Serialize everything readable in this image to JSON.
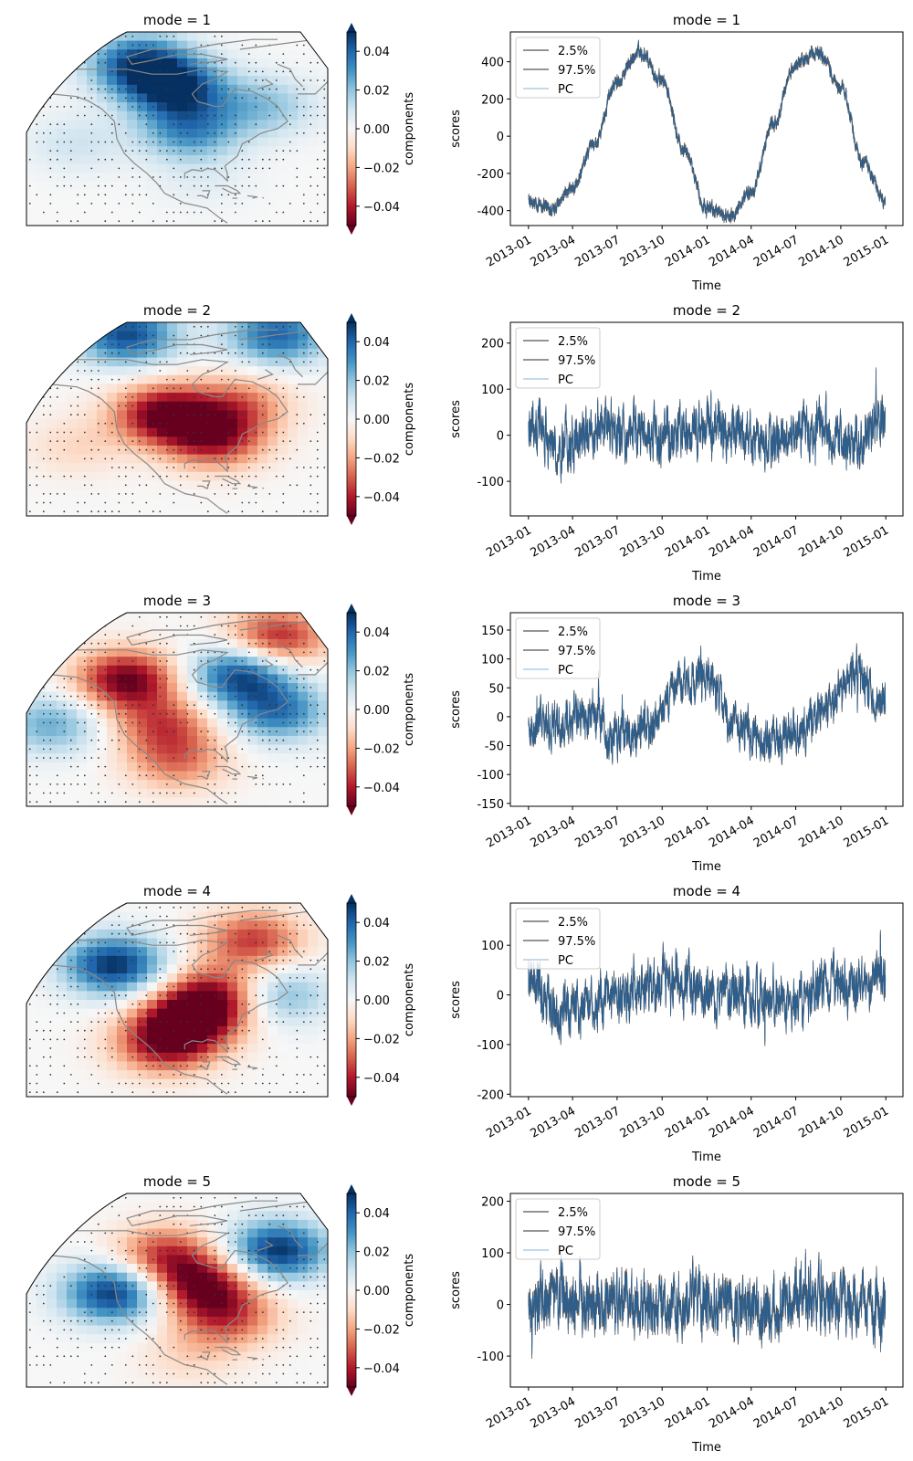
{
  "colors": {
    "band_line": "#555555",
    "pc_line": "#2b5f8f",
    "pc_legend": "#9ec3df",
    "coastline": "#888888",
    "stipple": "#333333",
    "frame": "#000000",
    "cmap_RdBu": [
      "#67001f",
      "#b2182b",
      "#d6604d",
      "#f4a582",
      "#fddbc7",
      "#f7f7f7",
      "#d1e5f0",
      "#92c5de",
      "#4393c3",
      "#2166ac",
      "#053061"
    ]
  },
  "colorbar": {
    "label": "components",
    "ticks": [
      "0.04",
      "0.02",
      "0.00",
      "−0.02",
      "−0.04"
    ],
    "range": [
      -0.05,
      0.05
    ]
  },
  "chart_data": [
    {
      "panel": "map",
      "type": "heatmap",
      "title": "mode = 1",
      "colorbar_label": "components",
      "pattern": "broadly positive over North America and western Atlantic, strongest near Hudson Bay and the Arctic",
      "anomalies": [
        {
          "lon": -100,
          "lat": 62,
          "value": 0.045
        },
        {
          "lon": -115,
          "lat": 72,
          "value": 0.045
        },
        {
          "lon": -95,
          "lat": 45,
          "value": 0.03
        },
        {
          "lon": -65,
          "lat": 55,
          "value": 0.02
        },
        {
          "lon": -140,
          "lat": 40,
          "value": 0.01
        },
        {
          "lon": -90,
          "lat": 25,
          "value": 0.005
        }
      ]
    },
    {
      "panel": "timeseries",
      "type": "line",
      "title": "mode = 1",
      "xlabel": "Time",
      "ylabel": "scores",
      "xlim": [
        "2012-11-25",
        "2015-02-05"
      ],
      "ylim": [
        -480,
        560
      ],
      "yticks": [
        -400,
        -200,
        0,
        200,
        400
      ],
      "legend": {
        "position": "top-left",
        "entries": [
          "2.5%",
          "97.5%",
          "PC"
        ]
      },
      "series": [
        {
          "name": "PC",
          "x": [
            "2013-01-01",
            "2013-02-15",
            "2013-04-01",
            "2013-05-15",
            "2013-07-01",
            "2013-08-15",
            "2013-10-01",
            "2013-11-15",
            "2014-01-01",
            "2014-02-15",
            "2014-04-01",
            "2014-05-15",
            "2014-07-01",
            "2014-08-15",
            "2014-10-01",
            "2014-11-15",
            "2014-12-31"
          ],
          "y": [
            -340,
            -390,
            -280,
            -50,
            300,
            460,
            300,
            -80,
            -390,
            -430,
            -310,
            60,
            390,
            450,
            270,
            -140,
            -350
          ]
        }
      ],
      "noise_amplitude": 40,
      "band_halfwidth": 12
    },
    {
      "panel": "map",
      "type": "heatmap",
      "title": "mode = 2",
      "colorbar_label": "components",
      "pattern": "strong negative over western and central North America, positive over the high Arctic",
      "anomalies": [
        {
          "lon": -105,
          "lat": 48,
          "value": -0.05
        },
        {
          "lon": -85,
          "lat": 38,
          "value": -0.04
        },
        {
          "lon": -75,
          "lat": 52,
          "value": -0.025
        },
        {
          "lon": -120,
          "lat": 80,
          "value": 0.045
        },
        {
          "lon": -60,
          "lat": 80,
          "value": 0.04
        },
        {
          "lon": -140,
          "lat": 35,
          "value": -0.01
        }
      ]
    },
    {
      "panel": "timeseries",
      "type": "line",
      "title": "mode = 2",
      "xlabel": "Time",
      "ylabel": "scores",
      "xlim": [
        "2012-11-25",
        "2015-02-05"
      ],
      "ylim": [
        -175,
        245
      ],
      "yticks": [
        -100,
        0,
        100,
        200
      ],
      "legend": {
        "position": "top-left",
        "entries": [
          "2.5%",
          "97.5%",
          "PC"
        ]
      },
      "series": [
        {
          "name": "PC",
          "x": [
            "2013-01-01",
            "2013-03-01",
            "2013-05-01",
            "2013-07-01",
            "2013-09-01",
            "2013-11-01",
            "2014-01-01",
            "2014-03-01",
            "2014-05-01",
            "2014-07-01",
            "2014-09-01",
            "2014-11-01",
            "2014-12-31"
          ],
          "y": [
            20,
            -30,
            0,
            15,
            5,
            -10,
            20,
            5,
            -15,
            10,
            15,
            -20,
            60
          ]
        }
      ],
      "noise_amplitude": 70,
      "band_halfwidth": 5
    },
    {
      "panel": "map",
      "type": "heatmap",
      "title": "mode = 3",
      "colorbar_label": "components",
      "pattern": "negative along western North America and Rockies, positive over eastern Canada and the western Atlantic",
      "anomalies": [
        {
          "lon": -120,
          "lat": 58,
          "value": -0.05
        },
        {
          "lon": -105,
          "lat": 40,
          "value": -0.03
        },
        {
          "lon": -100,
          "lat": 25,
          "value": -0.025
        },
        {
          "lon": -75,
          "lat": 60,
          "value": 0.045
        },
        {
          "lon": -60,
          "lat": 45,
          "value": 0.035
        },
        {
          "lon": -60,
          "lat": 75,
          "value": -0.04
        },
        {
          "lon": -150,
          "lat": 40,
          "value": 0.025
        }
      ]
    },
    {
      "panel": "timeseries",
      "type": "line",
      "title": "mode = 3",
      "xlabel": "Time",
      "ylabel": "scores",
      "xlim": [
        "2012-11-25",
        "2015-02-05"
      ],
      "ylim": [
        -155,
        180
      ],
      "yticks": [
        -150,
        -100,
        -50,
        0,
        50,
        100,
        150
      ],
      "legend": {
        "position": "top-left",
        "entries": [
          "2.5%",
          "97.5%",
          "PC"
        ]
      },
      "series": [
        {
          "name": "PC",
          "x": [
            "2013-01-01",
            "2013-03-01",
            "2013-05-01",
            "2013-07-01",
            "2013-09-01",
            "2013-11-01",
            "2014-01-01",
            "2014-03-01",
            "2014-05-01",
            "2014-07-01",
            "2014-09-01",
            "2014-11-01",
            "2014-12-31"
          ],
          "y": [
            -20,
            -10,
            0,
            -40,
            -20,
            50,
            70,
            -20,
            -40,
            -30,
            20,
            70,
            30
          ]
        }
      ],
      "noise_amplitude": 45,
      "band_halfwidth": 4
    },
    {
      "panel": "map",
      "type": "heatmap",
      "title": "mode = 4",
      "colorbar_label": "components",
      "pattern": "positive over the Pacific Northwest and eastern Canada, negative band across central and southeastern North America",
      "anomalies": [
        {
          "lon": -125,
          "lat": 60,
          "value": 0.05
        },
        {
          "lon": -95,
          "lat": 38,
          "value": -0.045
        },
        {
          "lon": -85,
          "lat": 48,
          "value": -0.04
        },
        {
          "lon": -105,
          "lat": 28,
          "value": -0.04
        },
        {
          "lon": -60,
          "lat": 48,
          "value": 0.025
        },
        {
          "lon": -70,
          "lat": 70,
          "value": -0.035
        }
      ]
    },
    {
      "panel": "timeseries",
      "type": "line",
      "title": "mode = 4",
      "xlabel": "Time",
      "ylabel": "scores",
      "xlim": [
        "2012-11-25",
        "2015-02-05"
      ],
      "ylim": [
        -205,
        185
      ],
      "yticks": [
        -200,
        -100,
        0,
        100
      ],
      "legend": {
        "position": "top-left",
        "entries": [
          "2.5%",
          "97.5%",
          "PC"
        ]
      },
      "series": [
        {
          "name": "PC",
          "x": [
            "2013-01-01",
            "2013-03-01",
            "2013-05-01",
            "2013-07-01",
            "2013-09-01",
            "2013-11-01",
            "2014-01-01",
            "2014-03-01",
            "2014-05-01",
            "2014-07-01",
            "2014-09-01",
            "2014-11-01",
            "2014-12-31"
          ],
          "y": [
            40,
            -40,
            -20,
            0,
            20,
            20,
            10,
            0,
            -20,
            -10,
            20,
            20,
            30
          ]
        }
      ],
      "noise_amplitude": 65,
      "band_halfwidth": 5
    },
    {
      "panel": "map",
      "type": "heatmap",
      "title": "mode = 5",
      "colorbar_label": "components",
      "pattern": "positive over the Pacific coast and Labrador Sea, negative over central and eastern North America",
      "anomalies": [
        {
          "lon": -125,
          "lat": 45,
          "value": 0.05
        },
        {
          "lon": -60,
          "lat": 62,
          "value": 0.05
        },
        {
          "lon": -90,
          "lat": 48,
          "value": -0.045
        },
        {
          "lon": -105,
          "lat": 60,
          "value": -0.035
        },
        {
          "lon": -80,
          "lat": 35,
          "value": -0.03
        },
        {
          "lon": -95,
          "lat": 20,
          "value": -0.01
        }
      ]
    },
    {
      "panel": "timeseries",
      "type": "line",
      "title": "mode = 5",
      "xlabel": "Time",
      "ylabel": "scores",
      "xlim": [
        "2012-11-25",
        "2015-02-05"
      ],
      "ylim": [
        -160,
        215
      ],
      "yticks": [
        -100,
        0,
        100,
        200
      ],
      "legend": {
        "position": "top-left",
        "entries": [
          "2.5%",
          "97.5%",
          "PC"
        ]
      },
      "series": [
        {
          "name": "PC",
          "x": [
            "2013-01-01",
            "2013-03-01",
            "2013-05-01",
            "2013-07-01",
            "2013-09-01",
            "2013-11-01",
            "2014-01-01",
            "2014-03-01",
            "2014-05-01",
            "2014-07-01",
            "2014-09-01",
            "2014-11-01",
            "2014-12-31"
          ],
          "y": [
            0,
            20,
            0,
            10,
            -10,
            0,
            10,
            0,
            -10,
            10,
            0,
            10,
            -10
          ]
        }
      ],
      "noise_amplitude": 70,
      "band_halfwidth": 8
    }
  ],
  "time_ticks": [
    "2013-01",
    "2013-04",
    "2013-07",
    "2013-10",
    "2014-01",
    "2014-04",
    "2014-07",
    "2014-10",
    "2015-01"
  ]
}
